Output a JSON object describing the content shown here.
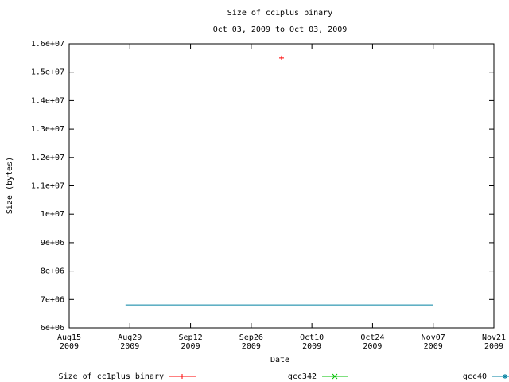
{
  "chart_data": {
    "type": "line",
    "title": "Size of cc1plus binary",
    "subtitle": "Oct 03, 2009 to Oct 03, 2009",
    "x_label": "Date",
    "y_label": "Size (bytes)",
    "xlim": [
      "2009-08-15",
      "2009-11-21"
    ],
    "xticks": [
      {
        "value": "2009-08-15",
        "label": [
          "Aug15",
          "2009"
        ]
      },
      {
        "value": "2009-08-29",
        "label": [
          "Aug29",
          "2009"
        ]
      },
      {
        "value": "2009-09-12",
        "label": [
          "Sep12",
          "2009"
        ]
      },
      {
        "value": "2009-09-26",
        "label": [
          "Sep26",
          "2009"
        ]
      },
      {
        "value": "2009-10-10",
        "label": [
          "Oct10",
          "2009"
        ]
      },
      {
        "value": "2009-10-24",
        "label": [
          "Oct24",
          "2009"
        ]
      },
      {
        "value": "2009-11-07",
        "label": [
          "Nov07",
          "2009"
        ]
      },
      {
        "value": "2009-11-21",
        "label": [
          "Nov21",
          "2009"
        ]
      }
    ],
    "ylim": [
      6000000,
      16000000
    ],
    "yticks": [
      {
        "value": 6000000,
        "label": "6e+06"
      },
      {
        "value": 7000000,
        "label": "7e+06"
      },
      {
        "value": 8000000,
        "label": "8e+06"
      },
      {
        "value": 9000000,
        "label": "9e+06"
      },
      {
        "value": 10000000,
        "label": "1e+07"
      },
      {
        "value": 11000000,
        "label": "1.1e+07"
      },
      {
        "value": 12000000,
        "label": "1.2e+07"
      },
      {
        "value": 13000000,
        "label": "1.3e+07"
      },
      {
        "value": 14000000,
        "label": "1.4e+07"
      },
      {
        "value": 15000000,
        "label": "1.5e+07"
      },
      {
        "value": 16000000,
        "label": "1.6e+07"
      }
    ],
    "series": [
      {
        "name": "Size of cc1plus binary",
        "color": "#ff0000",
        "marker": "+",
        "x": [
          "2009-10-03"
        ],
        "values": [
          15500000
        ]
      },
      {
        "name": "gcc342",
        "color": "#00c000",
        "marker": "x",
        "x": [],
        "values": []
      },
      {
        "name": "gcc40",
        "color": "#0080a0",
        "marker": "*",
        "x": [
          "2009-08-28",
          "2009-11-07"
        ],
        "values": [
          6810000,
          6810000
        ]
      }
    ]
  }
}
